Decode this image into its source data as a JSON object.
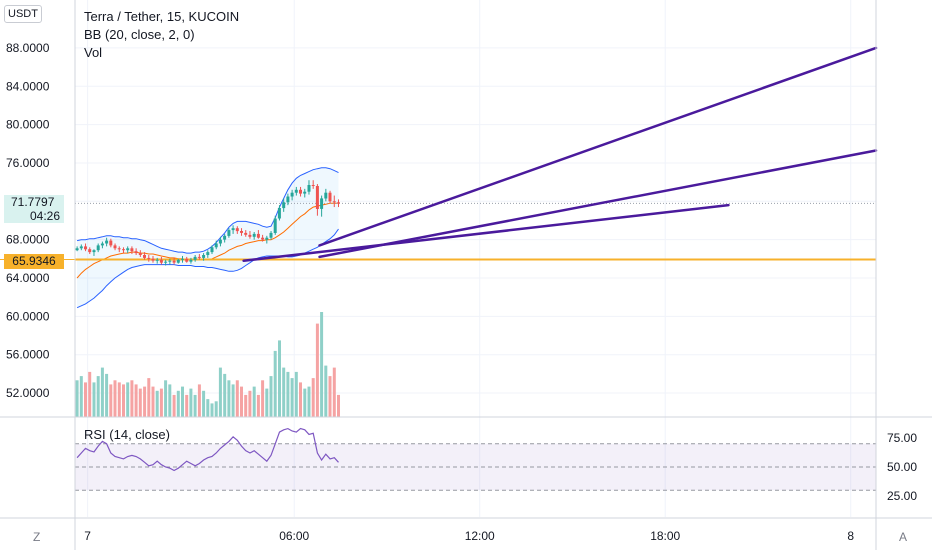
{
  "legend": {
    "symbol": "Terra / Tether, 15, KUCOIN",
    "bb": "BB (20, close, 2, 0)",
    "vol": "Vol"
  },
  "currency_button": "USDT",
  "rsi_label": "RSI (14, close)",
  "corner_buttons": {
    "left": "Z",
    "right": "A"
  },
  "colors": {
    "up": "#26a69a",
    "down": "#ef5350",
    "vol_up": "#8fd0c8",
    "vol_down": "#f5a3a3",
    "trendline": "#4a1a9c",
    "hline": "#f7b12b",
    "bb_band": "#2962ff",
    "bb_basis": "#ff6d00",
    "rsi": "#7e57c2"
  },
  "price_tags": {
    "last_price": "71.7797",
    "countdown": "04:26",
    "hline": "65.9346"
  },
  "chart_data": [
    {
      "type": "candlestick",
      "title": "Terra / Tether, 15, KUCOIN",
      "xlim": [
        0,
        190
      ],
      "ylim": [
        49.5,
        93
      ],
      "y_ticks": [
        "52.0000",
        "56.0000",
        "60.0000",
        "64.0000",
        "68.0000",
        "72.0000",
        "76.0000",
        "80.0000",
        "84.0000",
        "88.0000"
      ],
      "y_tick_values": [
        52,
        56,
        60,
        64,
        68,
        72,
        76,
        80,
        84,
        88
      ],
      "x_ticks": [
        "7",
        "06:00",
        "12:00",
        "18:00",
        "8"
      ],
      "x_tick_values": [
        3,
        52,
        96,
        140,
        184
      ],
      "horizontal_line": 65.9346,
      "last_price": 71.7797,
      "candles": [
        [
          66.9,
          67.3,
          66.8,
          67.1
        ],
        [
          67.1,
          67.5,
          66.9,
          67.3
        ],
        [
          67.3,
          67.6,
          66.8,
          67.0
        ],
        [
          67.0,
          67.2,
          66.5,
          66.7
        ],
        [
          66.7,
          67.0,
          66.3,
          66.9
        ],
        [
          66.9,
          67.6,
          66.7,
          67.4
        ],
        [
          67.4,
          67.8,
          67.1,
          67.6
        ],
        [
          67.6,
          68.2,
          67.3,
          67.9
        ],
        [
          67.9,
          68.1,
          67.2,
          67.4
        ],
        [
          67.4,
          67.6,
          66.9,
          67.1
        ],
        [
          67.1,
          67.3,
          66.7,
          67.0
        ],
        [
          67.0,
          67.2,
          66.6,
          66.9
        ],
        [
          66.9,
          67.3,
          66.6,
          67.1
        ],
        [
          67.1,
          67.3,
          66.5,
          66.8
        ],
        [
          66.8,
          67.1,
          66.4,
          66.6
        ],
        [
          66.6,
          66.9,
          66.2,
          66.4
        ],
        [
          66.4,
          66.7,
          65.9,
          66.1
        ],
        [
          66.1,
          66.4,
          65.7,
          66.0
        ],
        [
          66.0,
          66.3,
          65.6,
          65.8
        ],
        [
          65.8,
          66.1,
          65.5,
          65.9
        ],
        [
          65.9,
          66.2,
          65.4,
          65.6
        ],
        [
          65.6,
          65.9,
          65.3,
          65.7
        ],
        [
          65.7,
          66.0,
          65.4,
          65.8
        ],
        [
          65.8,
          66.1,
          65.4,
          65.6
        ],
        [
          65.6,
          66.0,
          65.5,
          65.9
        ],
        [
          65.9,
          66.3,
          65.6,
          66.0
        ],
        [
          66.0,
          66.2,
          65.6,
          65.7
        ],
        [
          65.7,
          66.1,
          65.5,
          65.9
        ],
        [
          65.9,
          66.4,
          65.7,
          66.2
        ],
        [
          66.2,
          66.5,
          65.9,
          66.1
        ],
        [
          66.1,
          66.6,
          65.8,
          66.4
        ],
        [
          66.4,
          66.9,
          66.1,
          66.7
        ],
        [
          66.7,
          67.4,
          66.5,
          67.2
        ],
        [
          67.2,
          67.9,
          67.0,
          67.6
        ],
        [
          67.6,
          68.3,
          67.3,
          68.0
        ],
        [
          68.0,
          68.6,
          67.7,
          68.4
        ],
        [
          68.4,
          69.2,
          68.2,
          69.0
        ],
        [
          69.0,
          69.5,
          68.6,
          69.2
        ],
        [
          69.2,
          69.4,
          68.6,
          68.9
        ],
        [
          68.9,
          69.2,
          68.4,
          68.7
        ],
        [
          68.7,
          69.0,
          68.3,
          68.5
        ],
        [
          68.5,
          68.9,
          68.1,
          68.3
        ],
        [
          68.3,
          68.8,
          68.0,
          68.6
        ],
        [
          68.6,
          69.0,
          68.1,
          68.2
        ],
        [
          68.2,
          68.5,
          67.8,
          68.0
        ],
        [
          68.0,
          68.4,
          67.6,
          68.2
        ],
        [
          68.2,
          68.9,
          68.0,
          68.7
        ],
        [
          68.7,
          70.5,
          68.5,
          70.2
        ],
        [
          70.2,
          71.6,
          70.0,
          71.3
        ],
        [
          71.3,
          72.3,
          70.9,
          71.9
        ],
        [
          71.9,
          72.8,
          71.6,
          72.5
        ],
        [
          72.5,
          73.2,
          72.1,
          72.9
        ],
        [
          72.9,
          73.5,
          72.6,
          73.2
        ],
        [
          73.2,
          73.5,
          72.5,
          72.8
        ],
        [
          72.8,
          73.3,
          72.4,
          73.0
        ],
        [
          73.0,
          74.2,
          72.7,
          73.7
        ],
        [
          73.7,
          74.2,
          73.3,
          73.6
        ],
        [
          73.6,
          73.8,
          70.5,
          71.2
        ],
        [
          71.2,
          72.6,
          70.4,
          72.3
        ],
        [
          72.3,
          73.3,
          72.0,
          72.9
        ],
        [
          72.9,
          73.1,
          71.8,
          72.0
        ],
        [
          72.0,
          72.6,
          71.4,
          71.9
        ],
        [
          71.9,
          72.2,
          71.4,
          71.78
        ]
      ],
      "bb_upper": [
        67.9,
        68.0,
        68.0,
        68.1,
        68.1,
        68.2,
        68.3,
        68.4,
        68.4,
        68.3,
        68.3,
        68.2,
        68.2,
        68.1,
        68.1,
        68.0,
        67.9,
        67.7,
        67.5,
        67.3,
        67.1,
        67.0,
        66.9,
        66.8,
        66.7,
        66.7,
        66.6,
        66.6,
        66.7,
        66.7,
        66.8,
        67.0,
        67.3,
        67.7,
        68.2,
        68.7,
        69.3,
        69.7,
        69.9,
        69.9,
        69.9,
        69.8,
        69.7,
        69.6,
        69.4,
        69.3,
        69.4,
        70.3,
        71.4,
        72.3,
        73.2,
        73.9,
        74.4,
        74.7,
        74.9,
        75.1,
        75.3,
        75.4,
        75.5,
        75.5,
        75.4,
        75.2,
        75.0
      ],
      "bb_basis": [
        64.0,
        64.5,
        64.9,
        65.2,
        65.5,
        65.7,
        65.9,
        66.1,
        66.3,
        66.4,
        66.5,
        66.6,
        66.6,
        66.7,
        66.7,
        66.6,
        66.6,
        66.5,
        66.5,
        66.4,
        66.3,
        66.2,
        66.1,
        66.1,
        66.0,
        66.0,
        65.9,
        65.9,
        65.9,
        65.9,
        65.9,
        65.9,
        66.0,
        66.2,
        66.4,
        66.6,
        66.9,
        67.1,
        67.3,
        67.4,
        67.6,
        67.7,
        67.8,
        67.9,
        67.9,
        68.0,
        68.0,
        68.2,
        68.5,
        68.8,
        69.2,
        69.6,
        70.0,
        70.4,
        70.7,
        71.1,
        71.4,
        71.5,
        71.6,
        71.7,
        71.8,
        71.8,
        71.8
      ],
      "bb_lower": [
        60.9,
        61.1,
        61.3,
        61.6,
        61.9,
        62.3,
        62.7,
        63.2,
        63.6,
        64.0,
        64.3,
        64.6,
        64.9,
        65.1,
        65.2,
        65.3,
        65.4,
        65.4,
        65.4,
        65.4,
        65.4,
        65.4,
        65.4,
        65.4,
        65.3,
        65.3,
        65.3,
        65.3,
        65.2,
        65.2,
        65.2,
        65.1,
        65.1,
        65.0,
        64.9,
        64.8,
        64.7,
        64.7,
        64.8,
        65.0,
        65.3,
        65.6,
        65.9,
        66.1,
        66.2,
        66.3,
        66.3,
        66.3,
        66.3,
        66.3,
        66.2,
        66.2,
        66.3,
        66.4,
        66.6,
        66.8,
        67.0,
        67.2,
        67.5,
        67.8,
        68.1,
        68.5,
        69.1
      ],
      "trendlines": [
        {
          "x": [
            58,
            190
          ],
          "y": [
            67.4,
            88.0
          ]
        },
        {
          "x": [
            58,
            190
          ],
          "y": [
            66.2,
            77.3
          ]
        },
        {
          "x": [
            40,
            155
          ],
          "y": [
            65.8,
            71.6
          ]
        }
      ]
    },
    {
      "type": "bar",
      "name": "Vol",
      "ylim": [
        0,
        5
      ],
      "values": [
        1.75,
        1.95,
        1.65,
        2.15,
        1.65,
        1.95,
        2.35,
        2.05,
        1.55,
        1.75,
        1.65,
        1.55,
        1.65,
        1.75,
        1.55,
        1.35,
        1.45,
        1.85,
        1.45,
        1.25,
        1.35,
        1.75,
        1.55,
        1.05,
        1.25,
        1.45,
        1.05,
        1.35,
        1.05,
        1.55,
        1.25,
        0.85,
        0.65,
        0.75,
        2.35,
        2.05,
        1.75,
        1.55,
        1.75,
        1.45,
        1.05,
        1.25,
        1.45,
        1.05,
        1.75,
        1.35,
        1.95,
        3.15,
        3.65,
        2.35,
        2.15,
        1.85,
        2.15,
        1.65,
        1.35,
        1.45,
        1.85,
        4.45,
        5.0,
        2.45,
        1.95,
        2.35,
        1.05
      ]
    },
    {
      "type": "line",
      "name": "RSI (14, close)",
      "ylim": [
        7,
        93
      ],
      "y_ticks": [
        "75.00",
        "50.00",
        "25.00"
      ],
      "y_tick_values": [
        75,
        50,
        25
      ],
      "band": [
        30,
        70
      ],
      "values": [
        58,
        62,
        66,
        64,
        63,
        68,
        72,
        70,
        62,
        59,
        58,
        57,
        59,
        60,
        59,
        57,
        54,
        51,
        52,
        55,
        52,
        50,
        49,
        47,
        49,
        52,
        55,
        53,
        51,
        53,
        56,
        58,
        59,
        62,
        66,
        69,
        72,
        76,
        73,
        68,
        64,
        62,
        64,
        61,
        58,
        55,
        60,
        70,
        80,
        82,
        83,
        81,
        80,
        83,
        82,
        78,
        79,
        62,
        56,
        61,
        57,
        58,
        54
      ]
    }
  ]
}
